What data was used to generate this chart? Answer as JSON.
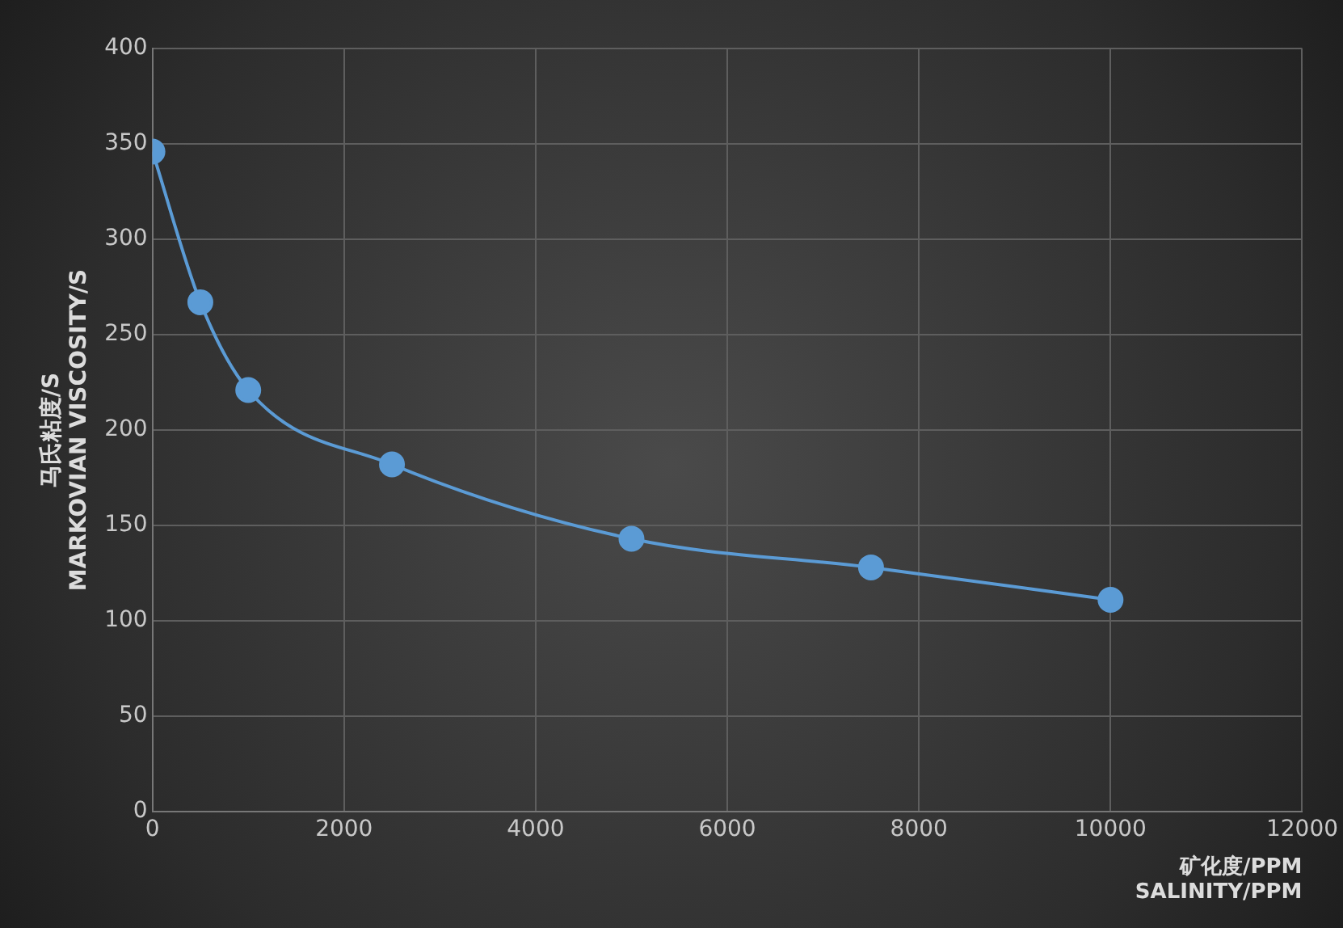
{
  "chart_data": {
    "type": "line",
    "xlabel": "矿化度/PPM\nSALINITY/PPM",
    "ylabel": "马氏粘度/S\nMARKOVIAN VISCOSITY/S",
    "x": [
      0,
      500,
      1000,
      2500,
      5000,
      7500,
      10000
    ],
    "series": [
      {
        "color": "#5b9bd5",
        "values": [
          346,
          267,
          221,
          182,
          143,
          128,
          111
        ]
      }
    ],
    "xlim": [
      0,
      12000
    ],
    "xticks": [
      0,
      2000,
      4000,
      6000,
      8000,
      10000,
      12000
    ],
    "ylim": [
      0,
      400
    ],
    "yticks": [
      0,
      50,
      100,
      150,
      200,
      250,
      300,
      350,
      400
    ],
    "grid": true,
    "marker": "circle",
    "line_style": "solid"
  }
}
